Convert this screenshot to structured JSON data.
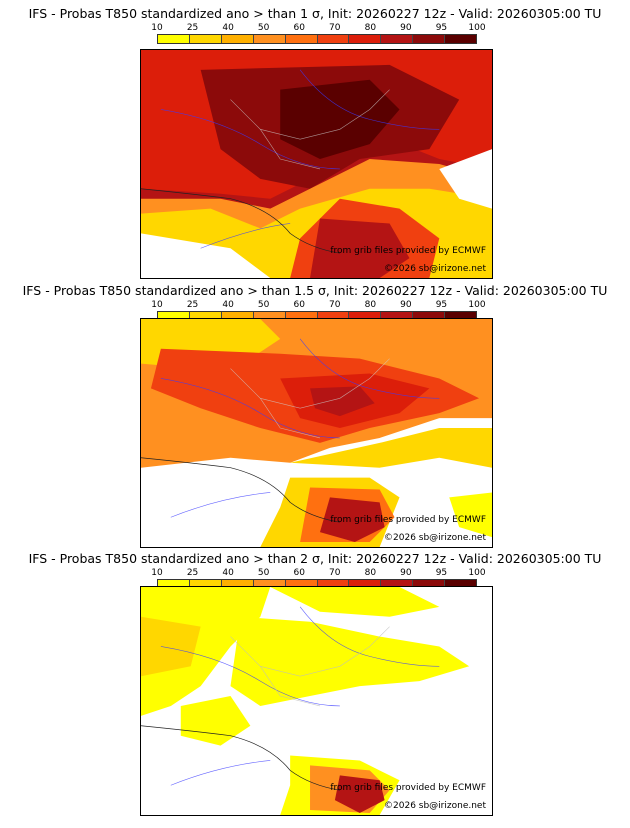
{
  "colorbar": {
    "labels": [
      "10",
      "25",
      "40",
      "50",
      "60",
      "70",
      "80",
      "90",
      "95",
      "100"
    ],
    "colors": [
      "#ffff00",
      "#ffd700",
      "#ffb000",
      "#ff9020",
      "#ff7010",
      "#f04010",
      "#dc1e0a",
      "#b41414",
      "#8c0a0a",
      "#5a0000"
    ]
  },
  "panels": [
    {
      "title": "IFS - Probas T850  standardized ano > than 1 σ, Init: 20260227 12z - Valid: 20260305:00 TU",
      "credit_line1": "from grib files provided by ECMWF",
      "credit_line2": "©2026 sb@irizone.net"
    },
    {
      "title": "IFS - Probas T850  standardized ano > than 1.5 σ, Init: 20260227 12z - Valid: 20260305:00 TU",
      "credit_line1": "from grib files provided by ECMWF",
      "credit_line2": "©2026 sb@irizone.net"
    },
    {
      "title": "IFS - Probas T850  standardized ano > than 2 σ, Init: 20260227 12z - Valid: 20260305:00 TU",
      "credit_line1": "from grib files provided by ECMWF",
      "credit_line2": "©2026 sb@irizone.net"
    }
  ]
}
